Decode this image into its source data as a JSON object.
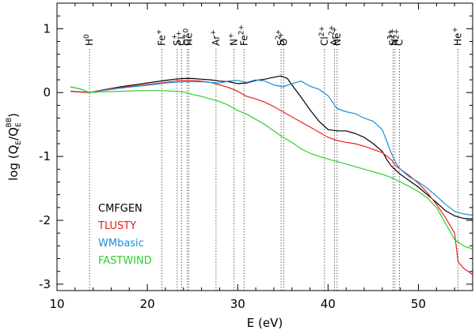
{
  "chart_data": {
    "type": "line",
    "title": "",
    "xlabel": "E (eV)",
    "ylabel": "log (Q_E/Q_E^BB)",
    "ylabel_parts": {
      "main": "log (Q",
      "sub1": "E",
      "mid": "/Q",
      "sub2": "E",
      "sup": "BB",
      "end": ")"
    },
    "xlim": [
      10,
      56
    ],
    "ylim": [
      -3.1,
      1.4
    ],
    "xticks": [
      10,
      20,
      30,
      40,
      50
    ],
    "yticks": [
      1,
      0,
      -1,
      -2,
      -3
    ],
    "ion_edges": [
      {
        "ion": "H",
        "charge": "0",
        "energy": 13.6
      },
      {
        "ion": "Fe",
        "charge": "+",
        "energy": 21.6
      },
      {
        "ion": "S",
        "charge": "+",
        "energy": 23.3
      },
      {
        "ion": "Cl",
        "charge": "+",
        "energy": 23.8
      },
      {
        "ion": "C",
        "charge": "+",
        "energy": 24.4
      },
      {
        "ion": "He",
        "charge": "0",
        "energy": 24.6
      },
      {
        "ion": "Ar",
        "charge": "+",
        "energy": 27.6
      },
      {
        "ion": "N",
        "charge": "+",
        "energy": 29.6
      },
      {
        "ion": "Fe",
        "charge": "2+",
        "energy": 30.7
      },
      {
        "ion": "S",
        "charge": "2+",
        "energy": 34.8
      },
      {
        "ion": "O",
        "charge": "+",
        "energy": 35.1
      },
      {
        "ion": "Cl",
        "charge": "2+",
        "energy": 39.6
      },
      {
        "ion": "Ar",
        "charge": "2+",
        "energy": 40.7
      },
      {
        "ion": "Ne",
        "charge": "+",
        "energy": 41.0
      },
      {
        "ion": "S",
        "charge": "3+",
        "energy": 47.2
      },
      {
        "ion": "N",
        "charge": "2+",
        "energy": 47.4
      },
      {
        "ion": "C",
        "charge": "2+",
        "energy": 47.9
      },
      {
        "ion": "He",
        "charge": "+",
        "energy": 54.4
      }
    ],
    "series": [
      {
        "name": "CMFGEN",
        "color": "#000000",
        "x": [
          11.5,
          12.5,
          13.6,
          15,
          17,
          19,
          21,
          22,
          23,
          24,
          25,
          26,
          27,
          28,
          29,
          30,
          31,
          32,
          33,
          34,
          34.8,
          35.5,
          36,
          37,
          38,
          39,
          40,
          41,
          42,
          43,
          44,
          45,
          46,
          46.5,
          47,
          48,
          49,
          50,
          51,
          52,
          53,
          54,
          55,
          56
        ],
        "y": [
          0.02,
          0.01,
          0.0,
          0.04,
          0.09,
          0.13,
          0.17,
          0.19,
          0.21,
          0.22,
          0.22,
          0.21,
          0.2,
          0.18,
          0.17,
          0.14,
          0.15,
          0.19,
          0.21,
          0.24,
          0.26,
          0.22,
          0.12,
          -0.07,
          -0.27,
          -0.45,
          -0.58,
          -0.6,
          -0.6,
          -0.64,
          -0.7,
          -0.8,
          -0.92,
          -1.05,
          -1.15,
          -1.28,
          -1.38,
          -1.48,
          -1.6,
          -1.72,
          -1.85,
          -1.93,
          -1.97,
          -1.98
        ]
      },
      {
        "name": "TLUSTY",
        "color": "#e8201c",
        "x": [
          11.5,
          12.5,
          13.6,
          15,
          17,
          19,
          21,
          22,
          23,
          24,
          25,
          26,
          27,
          28,
          29,
          30,
          31,
          32,
          33,
          34,
          35,
          36,
          37,
          38,
          39,
          40,
          41,
          42,
          43,
          44,
          45,
          46,
          47,
          47.5,
          48,
          49,
          50,
          51,
          52,
          53,
          54,
          54.4,
          55,
          56
        ],
        "y": [
          0.02,
          0.01,
          0.0,
          0.04,
          0.08,
          0.11,
          0.14,
          0.16,
          0.18,
          0.19,
          0.19,
          0.18,
          0.16,
          0.12,
          0.08,
          0.02,
          -0.06,
          -0.1,
          -0.15,
          -0.22,
          -0.3,
          -0.38,
          -0.46,
          -0.54,
          -0.62,
          -0.7,
          -0.75,
          -0.78,
          -0.8,
          -0.84,
          -0.89,
          -0.94,
          -1.05,
          -1.15,
          -1.2,
          -1.3,
          -1.42,
          -1.57,
          -1.75,
          -1.96,
          -2.2,
          -2.65,
          -2.75,
          -2.85
        ]
      },
      {
        "name": "WMbasic",
        "color": "#1a8ed6",
        "x": [
          11.5,
          12.5,
          13.6,
          15,
          17,
          19,
          21,
          22,
          23,
          24,
          25,
          26,
          27,
          28,
          29,
          30,
          31,
          32,
          33,
          34,
          35,
          36,
          37,
          38,
          39,
          40,
          41,
          42,
          43,
          44,
          45,
          46,
          47,
          47.5,
          48,
          49,
          50,
          51,
          52,
          53,
          54,
          55,
          56
        ],
        "y": [
          0.09,
          0.06,
          0.0,
          0.03,
          0.07,
          0.1,
          0.13,
          0.15,
          0.16,
          0.17,
          0.17,
          0.17,
          0.16,
          0.15,
          0.18,
          0.19,
          0.16,
          0.2,
          0.18,
          0.12,
          0.09,
          0.14,
          0.18,
          0.1,
          0.05,
          -0.05,
          -0.25,
          -0.3,
          -0.33,
          -0.4,
          -0.45,
          -0.58,
          -0.95,
          -1.1,
          -1.2,
          -1.32,
          -1.4,
          -1.5,
          -1.62,
          -1.75,
          -1.86,
          -1.9,
          -1.92
        ]
      },
      {
        "name": "FASTWIND",
        "color": "#2fcf2f",
        "x": [
          11.5,
          12.5,
          13.6,
          15,
          17,
          19,
          21,
          22,
          23,
          24,
          25,
          26,
          27,
          28,
          29,
          30,
          31,
          32,
          33,
          34,
          35,
          36,
          37,
          38,
          39,
          40,
          41,
          42,
          43,
          44,
          45,
          46,
          47,
          48,
          49,
          50,
          51,
          52,
          53,
          54,
          55,
          56
        ],
        "y": [
          0.09,
          0.06,
          0.0,
          0.01,
          0.02,
          0.03,
          0.03,
          0.03,
          0.02,
          0.01,
          -0.03,
          -0.06,
          -0.1,
          -0.14,
          -0.2,
          -0.28,
          -0.34,
          -0.42,
          -0.5,
          -0.6,
          -0.7,
          -0.78,
          -0.88,
          -0.95,
          -1.0,
          -1.04,
          -1.08,
          -1.12,
          -1.16,
          -1.2,
          -1.24,
          -1.28,
          -1.33,
          -1.4,
          -1.47,
          -1.55,
          -1.65,
          -1.8,
          -2.05,
          -2.3,
          -2.4,
          -2.45
        ]
      }
    ]
  }
}
